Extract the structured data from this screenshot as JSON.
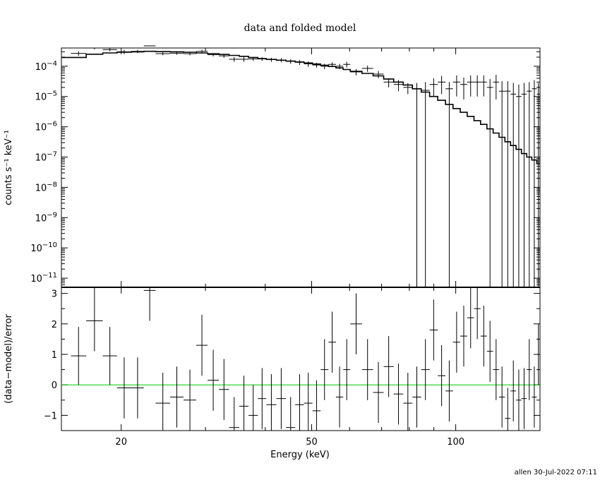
{
  "title": "data and folded model",
  "footer": "allen 30-Jul-2022 07:11",
  "chart_data": [
    {
      "type": "scatter",
      "panel": "top",
      "title": "data and folded model",
      "xlabel": "Energy (keV)",
      "ylabel": "counts s⁻¹ keV⁻¹",
      "xscale": "log",
      "yscale": "log",
      "xlim": [
        15,
        150
      ],
      "ylim": [
        5e-12,
        0.0004
      ],
      "y_ticks": [
        {
          "v": 1e-11,
          "base": "10",
          "exp": "−11"
        },
        {
          "v": 1e-10,
          "base": "10",
          "exp": "−10"
        },
        {
          "v": 1e-09,
          "base": "10",
          "exp": "−9"
        },
        {
          "v": 1e-08,
          "base": "10",
          "exp": "−8"
        },
        {
          "v": 1e-07,
          "base": "10",
          "exp": "−7"
        },
        {
          "v": 1e-06,
          "base": "10",
          "exp": "−6"
        },
        {
          "v": 1e-05,
          "base": "10",
          "exp": "−5"
        },
        {
          "v": 0.0001,
          "base": "10",
          "exp": "−4"
        }
      ],
      "series": [
        {
          "kind": "data",
          "points": [
            [
              15.7,
              16.9,
              0.000265,
              0.00022,
              0.00031
            ],
            [
              16.9,
              18.3,
              0.0004,
              0.00036,
              0.00044
            ],
            [
              18.3,
              19.6,
              0.000355,
              0.00031,
              0.0004
            ],
            [
              19.6,
              21.0,
              0.0003,
              0.00025,
              0.00035
            ],
            [
              21.0,
              22.3,
              0.00031,
              0.00027,
              0.00035
            ],
            [
              22.3,
              23.6,
              0.00047,
              0.00043,
              0.00051
            ],
            [
              23.6,
              25.3,
              0.00026,
              0.00023,
              0.00029
            ],
            [
              25.3,
              27.0,
              0.00027,
              0.00024,
              0.0003
            ],
            [
              27.0,
              28.7,
              0.00026,
              0.00023,
              0.00029
            ],
            [
              28.7,
              30.3,
              0.00031,
              0.00027,
              0.00035
            ],
            [
              30.3,
              32.0,
              0.00024,
              0.00021,
              0.00027
            ],
            [
              32.0,
              33.6,
              0.00022,
              0.00019,
              0.00025
            ],
            [
              33.6,
              35.3,
              0.00017,
              0.00014,
              0.0002
            ],
            [
              35.3,
              36.9,
              0.00017,
              0.00014,
              0.0002
            ],
            [
              36.9,
              38.6,
              0.000175,
              0.00015,
              0.0002
            ],
            [
              38.6,
              40.2,
              0.000175,
              0.00015,
              0.0002
            ],
            [
              40.2,
              42.2,
              0.000165,
              0.00014,
              0.00019
            ],
            [
              42.2,
              44.2,
              0.00016,
              0.000135,
              0.000185
            ],
            [
              44.2,
              46.2,
              0.000145,
              0.00012,
              0.00017
            ],
            [
              46.2,
              48.2,
              0.000135,
              0.00011,
              0.00016
            ],
            [
              48.2,
              50.2,
              0.00012,
              9.5e-05,
              0.000145
            ],
            [
              50.2,
              52.2,
              0.00011,
              9e-05,
              0.00013
            ],
            [
              52.2,
              54.2,
              0.0001,
              8e-05,
              0.00012
            ],
            [
              54.2,
              56.2,
              0.000115,
              9.5e-05,
              0.000135
            ],
            [
              56.2,
              58.2,
              0.0001,
              8e-05,
              0.00012
            ],
            [
              58.2,
              60.2,
              0.000115,
              9e-05,
              0.00014
            ],
            [
              60.2,
              63.7,
              6.5e-05,
              5e-05,
              8e-05
            ],
            [
              63.7,
              67.2,
              8.5e-05,
              6.5e-05,
              0.000105
            ],
            [
              67.2,
              70.7,
              5.5e-05,
              4e-05,
              7e-05
            ],
            [
              70.7,
              74.2,
              3e-05,
              2e-05,
              4e-05
            ],
            [
              74.2,
              77.7,
              2.5e-05,
              1.5e-05,
              3.5e-05
            ],
            [
              77.7,
              81.2,
              2e-05,
              1.2e-05,
              2.8e-05
            ],
            [
              81.2,
              84.7,
              1.8e-05,
              5e-12,
              2.8e-05
            ],
            [
              84.7,
              88.2,
              1.6e-05,
              5e-12,
              3e-05
            ],
            [
              88.2,
              91.7,
              2.5e-05,
              1e-05,
              4e-05
            ],
            [
              91.7,
              95.2,
              3e-05,
              1.2e-05,
              4.8e-05
            ],
            [
              95.2,
              98.7,
              1.8e-05,
              5e-12,
              3e-05
            ],
            [
              98.7,
              102.2,
              3e-05,
              1e-05,
              5e-05
            ],
            [
              102.2,
              105.7,
              2.5e-05,
              8e-06,
              4.2e-05
            ],
            [
              105.7,
              109.2,
              3e-05,
              1e-05,
              5e-05
            ],
            [
              109.2,
              112.7,
              3e-05,
              1e-05,
              5e-05
            ],
            [
              112.7,
              116.2,
              3e-05,
              1e-05,
              5e-05
            ],
            [
              116.2,
              119.7,
              2e-05,
              5e-12,
              3.8e-05
            ],
            [
              119.7,
              123.2,
              3e-05,
              8e-06,
              5.2e-05
            ],
            [
              123.2,
              126.7,
              1.5e-05,
              5e-12,
              3.2e-05
            ],
            [
              126.7,
              130.2,
              1.5e-05,
              5e-12,
              3.2e-05
            ],
            [
              130.2,
              133.7,
              1.2e-05,
              5e-12,
              2.8e-05
            ],
            [
              133.7,
              137.2,
              1e-05,
              5e-12,
              2.5e-05
            ],
            [
              137.2,
              140.7,
              1.2e-05,
              5e-12,
              2.8e-05
            ],
            [
              140.7,
              144.2,
              1.5e-05,
              5e-12,
              3e-05
            ],
            [
              144.2,
              147.7,
              1.8e-05,
              5e-12,
              3.5e-05
            ],
            [
              147.7,
              150.0,
              1.2e-05,
              5e-12,
              2.8e-05
            ]
          ]
        },
        {
          "kind": "model",
          "points": [
            [
              15.0,
              0.000195
            ],
            [
              16.9,
              0.00025
            ],
            [
              18.3,
              0.000275
            ],
            [
              19.6,
              0.00029
            ],
            [
              21.0,
              0.0003
            ],
            [
              22.3,
              0.00031
            ],
            [
              23.6,
              0.000305
            ],
            [
              25.3,
              0.0003
            ],
            [
              27.0,
              0.00029
            ],
            [
              28.7,
              0.000275
            ],
            [
              30.3,
              0.00026
            ],
            [
              32.0,
              0.000245
            ],
            [
              33.6,
              0.000228
            ],
            [
              35.3,
              0.000212
            ],
            [
              36.9,
              0.000195
            ],
            [
              38.6,
              0.00018
            ],
            [
              40.2,
              0.000168
            ],
            [
              42.2,
              0.000158
            ],
            [
              44.2,
              0.000148
            ],
            [
              46.2,
              0.000138
            ],
            [
              48.2,
              0.000128
            ],
            [
              50.2,
              0.000118
            ],
            [
              52.2,
              0.000108
            ],
            [
              54.2,
              9.8e-05
            ],
            [
              56.2,
              8.8e-05
            ],
            [
              58.2,
              7.8e-05
            ],
            [
              60.2,
              6.8e-05
            ],
            [
              63.7,
              5.8e-05
            ],
            [
              67.2,
              4.8e-05
            ],
            [
              70.7,
              3.8e-05
            ],
            [
              74.2,
              3e-05
            ],
            [
              77.7,
              2.4e-05
            ],
            [
              81.2,
              1.8e-05
            ],
            [
              84.7,
              1.4e-05
            ],
            [
              88.2,
              1e-05
            ],
            [
              91.7,
              7.5e-06
            ],
            [
              95.2,
              5.5e-06
            ],
            [
              98.7,
              4e-06
            ],
            [
              102.2,
              3e-06
            ],
            [
              105.7,
              2.2e-06
            ],
            [
              109.2,
              1.6e-06
            ],
            [
              112.7,
              1.2e-06
            ],
            [
              116.2,
              8.5e-07
            ],
            [
              119.7,
              6.2e-07
            ],
            [
              123.2,
              4.5e-07
            ],
            [
              126.7,
              3.2e-07
            ],
            [
              130.2,
              2.4e-07
            ],
            [
              133.7,
              1.8e-07
            ],
            [
              137.2,
              1.3e-07
            ],
            [
              140.7,
              1e-07
            ],
            [
              144.2,
              8e-08
            ],
            [
              147.7,
              6e-08
            ],
            [
              150.0,
              5e-08
            ]
          ]
        }
      ]
    },
    {
      "type": "scatter",
      "panel": "bottom",
      "xlabel": "Energy (keV)",
      "ylabel": "(data−model)/error",
      "xscale": "log",
      "xlim": [
        15,
        150
      ],
      "ylim": [
        -1.5,
        3.2
      ],
      "x_ticks": [
        {
          "v": 20,
          "label": "20"
        },
        {
          "v": 50,
          "label": "50"
        },
        {
          "v": 100,
          "label": "100"
        }
      ],
      "y_ticks": [
        {
          "v": -1,
          "label": "−1"
        },
        {
          "v": 0,
          "label": "0"
        },
        {
          "v": 1,
          "label": "1"
        },
        {
          "v": 2,
          "label": "2"
        },
        {
          "v": 3,
          "label": "3"
        }
      ],
      "zero_line_color": "#00cc00",
      "series": [
        {
          "kind": "residuals",
          "points": [
            [
              15.7,
              16.9,
              0.95,
              0.0,
              1.9
            ],
            [
              16.9,
              18.3,
              2.1,
              1.1,
              3.2
            ],
            [
              18.3,
              19.6,
              0.95,
              0.0,
              1.9
            ],
            [
              19.6,
              21.0,
              -0.1,
              -1.1,
              0.9
            ],
            [
              21.0,
              22.3,
              -0.1,
              -1.1,
              0.9
            ],
            [
              22.3,
              23.6,
              3.1,
              2.1,
              3.2
            ],
            [
              23.6,
              25.3,
              -0.6,
              -1.5,
              0.4
            ],
            [
              25.3,
              27.0,
              -0.4,
              -1.4,
              0.6
            ],
            [
              27.0,
              28.7,
              -0.5,
              -1.5,
              0.5
            ],
            [
              28.7,
              30.3,
              1.3,
              0.3,
              2.3
            ],
            [
              30.3,
              32.0,
              0.15,
              -0.85,
              1.15
            ],
            [
              32.0,
              33.6,
              -0.15,
              -1.15,
              0.85
            ],
            [
              33.6,
              35.3,
              -1.4,
              -1.5,
              -0.4
            ],
            [
              35.3,
              36.9,
              -0.7,
              -1.5,
              0.3
            ],
            [
              36.9,
              38.6,
              -1.0,
              -1.5,
              0.0
            ],
            [
              38.6,
              40.2,
              -0.45,
              -1.45,
              0.55
            ],
            [
              40.2,
              42.2,
              -0.65,
              -1.5,
              0.35
            ],
            [
              42.2,
              44.2,
              -0.45,
              -1.45,
              0.55
            ],
            [
              44.2,
              46.2,
              -1.4,
              -1.5,
              -0.4
            ],
            [
              46.2,
              48.2,
              -0.65,
              -1.5,
              0.35
            ],
            [
              48.2,
              50.2,
              -0.6,
              -1.5,
              0.4
            ],
            [
              50.2,
              52.2,
              -0.85,
              -1.5,
              0.15
            ],
            [
              52.2,
              54.2,
              0.5,
              -0.5,
              1.5
            ],
            [
              54.2,
              56.2,
              1.4,
              0.4,
              2.4
            ],
            [
              56.2,
              58.2,
              -0.4,
              -1.4,
              0.6
            ],
            [
              58.2,
              60.2,
              0.5,
              -0.5,
              1.5
            ],
            [
              60.2,
              63.7,
              2.0,
              1.0,
              3.0
            ],
            [
              63.7,
              67.2,
              0.5,
              -0.5,
              1.5
            ],
            [
              67.2,
              70.7,
              -0.25,
              -1.25,
              0.75
            ],
            [
              70.7,
              74.2,
              0.6,
              -0.4,
              1.6
            ],
            [
              74.2,
              77.7,
              -0.3,
              -1.3,
              0.7
            ],
            [
              77.7,
              81.2,
              -0.6,
              -1.5,
              0.4
            ],
            [
              81.2,
              84.7,
              -0.4,
              -1.4,
              0.6
            ],
            [
              84.7,
              88.2,
              0.5,
              -0.5,
              1.5
            ],
            [
              88.2,
              91.7,
              1.8,
              0.8,
              2.8
            ],
            [
              91.7,
              95.2,
              0.3,
              -0.7,
              1.3
            ],
            [
              95.2,
              98.7,
              -0.2,
              -1.2,
              0.8
            ],
            [
              98.7,
              102.2,
              1.4,
              0.4,
              2.4
            ],
            [
              102.2,
              105.7,
              1.6,
              0.6,
              2.6
            ],
            [
              105.7,
              109.2,
              2.2,
              1.2,
              3.2
            ],
            [
              109.2,
              112.7,
              2.5,
              1.5,
              3.2
            ],
            [
              112.7,
              116.2,
              1.6,
              0.6,
              2.6
            ],
            [
              116.2,
              119.7,
              1.1,
              0.1,
              2.1
            ],
            [
              119.7,
              123.2,
              0.5,
              -0.5,
              1.5
            ],
            [
              123.2,
              126.7,
              -0.4,
              -1.4,
              0.6
            ],
            [
              126.7,
              130.2,
              -1.1,
              -1.5,
              -0.1
            ],
            [
              130.2,
              133.7,
              -0.2,
              -1.2,
              0.8
            ],
            [
              133.7,
              137.2,
              -0.5,
              -1.5,
              0.5
            ],
            [
              137.2,
              140.7,
              -0.45,
              -1.45,
              0.55
            ],
            [
              140.7,
              144.2,
              0.5,
              -0.5,
              1.5
            ],
            [
              144.2,
              147.7,
              -0.4,
              -1.4,
              0.6
            ],
            [
              147.7,
              150.0,
              1.0,
              0.0,
              2.0
            ]
          ]
        }
      ]
    }
  ]
}
